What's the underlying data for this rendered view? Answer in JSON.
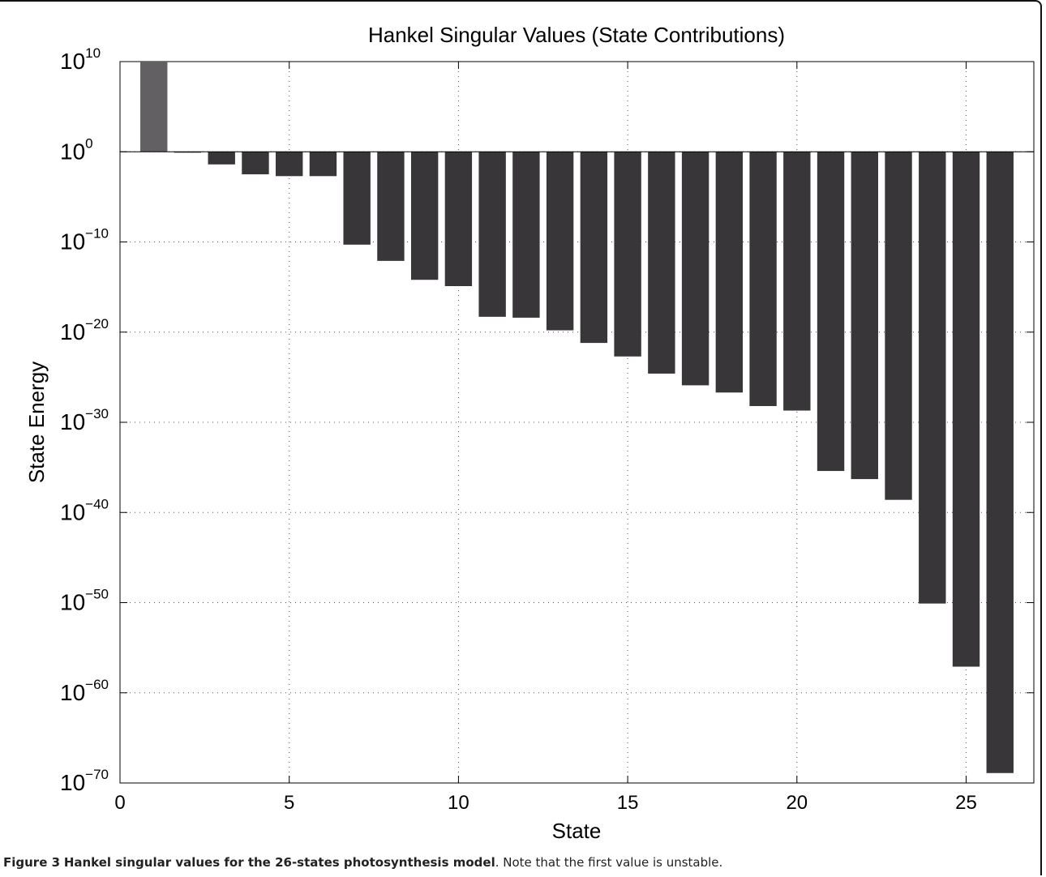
{
  "caption": {
    "label": "Figure 3",
    "bold_text": "Hankel singular values for the 26-states photosynthesis model",
    "rest": ". Note that the first value is unstable."
  },
  "colors": {
    "bar": "#383638",
    "unstable_bar": "#626062",
    "grid": "#555555",
    "axis": "#000000"
  },
  "chart_data": {
    "type": "bar",
    "title": "Hankel Singular Values (State Contributions)",
    "xlabel": "State",
    "ylabel": "State Energy",
    "yscale": "log",
    "xlim": [
      0,
      27
    ],
    "ylim_exponent": [
      -70,
      10
    ],
    "baseline_exponent": 0,
    "xticks": [
      0,
      5,
      10,
      15,
      20,
      25
    ],
    "yticks": [
      {
        "base": "10",
        "exp": "10"
      },
      {
        "base": "10",
        "exp": "0"
      },
      {
        "base": "10",
        "exp": "−10"
      },
      {
        "base": "10",
        "exp": "−20"
      },
      {
        "base": "10",
        "exp": "−30"
      },
      {
        "base": "10",
        "exp": "−40"
      },
      {
        "base": "10",
        "exp": "−50"
      },
      {
        "base": "10",
        "exp": "−60"
      },
      {
        "base": "10",
        "exp": "−70"
      }
    ],
    "ytick_exponents": [
      10,
      0,
      -10,
      -20,
      -30,
      -40,
      -50,
      -60,
      -70
    ],
    "grid": true,
    "series": [
      {
        "x": [
          1,
          2,
          3,
          4,
          5,
          6,
          7,
          8,
          9,
          10,
          11,
          12,
          13,
          14,
          15,
          16,
          17,
          18,
          19,
          20,
          21,
          22,
          23,
          24,
          25,
          26
        ],
        "log10_values": [
          10,
          -0.1,
          -1.4,
          -2.5,
          -2.7,
          -2.7,
          -10.3,
          -12.1,
          -14.2,
          -14.9,
          -18.3,
          -18.4,
          -19.8,
          -21.2,
          -22.7,
          -24.6,
          -25.9,
          -26.7,
          -28.2,
          -28.7,
          -35.4,
          -36.3,
          -38.6,
          -50.1,
          -57.1,
          -68.9
        ],
        "unstable_index": [
          1
        ]
      }
    ]
  }
}
